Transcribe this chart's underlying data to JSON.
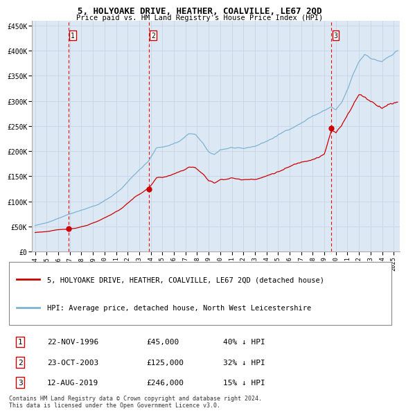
{
  "title": "5, HOLYOAKE DRIVE, HEATHER, COALVILLE, LE67 2QD",
  "subtitle": "Price paid vs. HM Land Registry's House Price Index (HPI)",
  "ylim": [
    0,
    460000
  ],
  "yticks": [
    0,
    50000,
    100000,
    150000,
    200000,
    250000,
    300000,
    350000,
    400000,
    450000
  ],
  "ytick_labels": [
    "£0",
    "£50K",
    "£100K",
    "£150K",
    "£200K",
    "£250K",
    "£300K",
    "£350K",
    "£400K",
    "£450K"
  ],
  "xlim_start": 1993.7,
  "xlim_end": 2025.5,
  "xticks": [
    1994,
    1995,
    1996,
    1997,
    1998,
    1999,
    2000,
    2001,
    2002,
    2003,
    2004,
    2005,
    2006,
    2007,
    2008,
    2009,
    2010,
    2011,
    2012,
    2013,
    2014,
    2015,
    2016,
    2017,
    2018,
    2019,
    2020,
    2021,
    2022,
    2023,
    2024,
    2025
  ],
  "purchase_dates": [
    1996.896,
    2003.814,
    2019.614
  ],
  "purchase_prices": [
    45000,
    125000,
    246000
  ],
  "purchase_labels": [
    "1",
    "2",
    "3"
  ],
  "hpi_color": "#7fb3d3",
  "price_color": "#cc0000",
  "dot_color": "#cc0000",
  "grid_color": "#c8d8e8",
  "bg_color": "#dce8f4",
  "legend_label_price": "5, HOLYOAKE DRIVE, HEATHER, COALVILLE, LE67 2QD (detached house)",
  "legend_label_hpi": "HPI: Average price, detached house, North West Leicestershire",
  "table_rows": [
    [
      "1",
      "22-NOV-1996",
      "£45,000",
      "40% ↓ HPI"
    ],
    [
      "2",
      "23-OCT-2003",
      "£125,000",
      "32% ↓ HPI"
    ],
    [
      "3",
      "12-AUG-2019",
      "£246,000",
      "15% ↓ HPI"
    ]
  ],
  "footnote": "Contains HM Land Registry data © Crown copyright and database right 2024.\nThis data is licensed under the Open Government Licence v3.0."
}
